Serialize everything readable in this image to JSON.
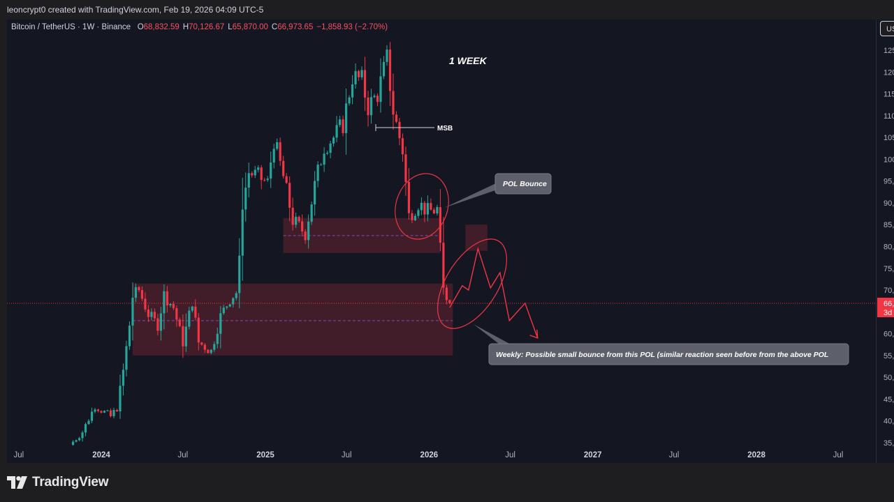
{
  "header": {
    "credit": "leoncrypt0 created with TradingView.com, Feb 19, 2026 04:09 UTC-5"
  },
  "legend": {
    "symbol": "Bitcoin / TetherUS · 1W · Binance",
    "open_key": "O",
    "open": "68,832.59",
    "high_key": "H",
    "high": "70,126.67",
    "low_key": "L",
    "low": "65,870.00",
    "close_key": "C",
    "close": "66,973.65",
    "change": "−1,858.93 (−2.70%)"
  },
  "currency_button": "US",
  "brand": "TradingView",
  "colors": {
    "up": "#26a69a",
    "down": "#f23645",
    "zone": "#f23645",
    "callout": "#5d606b"
  },
  "chart_data": {
    "type": "candlestick",
    "interval": "1W",
    "x_tick_labels": [
      "Jul",
      "2024",
      "Jul",
      "2025",
      "Jul",
      "2026",
      "Jul",
      "2027",
      "Jul",
      "2028",
      "Jul"
    ],
    "x_tick_values": [
      "2023-07",
      "2024-01",
      "2024-07",
      "2025-01",
      "2025-07",
      "2026-01",
      "2026-07",
      "2027-01",
      "2027-07",
      "2028-01",
      "2028-07"
    ],
    "y_tick_labels": [
      "125,",
      "120,",
      "115,",
      "110,",
      "105,",
      "100,",
      "95,",
      "90,",
      "85,",
      "80,",
      "75,",
      "70,",
      "60,",
      "55,",
      "50,",
      "45,",
      "40,",
      "35,"
    ],
    "y_tick_values": [
      125000,
      120000,
      115000,
      110000,
      105000,
      100000,
      95000,
      90000,
      85000,
      80000,
      75000,
      70000,
      60000,
      55000,
      50000,
      45000,
      40000,
      35000
    ],
    "ylim": [
      34000,
      128500
    ],
    "last_price_label": "66,",
    "last_price_countdown": "3d",
    "last_price": 66973.65,
    "close_path": [
      [
        "2023-10-23",
        34500
      ],
      [
        "2023-11-20",
        37500
      ],
      [
        "2023-12-18",
        43500
      ],
      [
        "2024-01-22",
        41000
      ],
      [
        "2024-02-05",
        43000
      ],
      [
        "2024-02-19",
        51500
      ],
      [
        "2024-03-04",
        62000
      ],
      [
        "2024-03-11",
        68500
      ],
      [
        "2024-03-25",
        70000
      ],
      [
        "2024-04-15",
        64500
      ],
      [
        "2024-05-06",
        62000
      ],
      [
        "2024-05-20",
        69000
      ],
      [
        "2024-06-10",
        66000
      ],
      [
        "2024-07-01",
        58000
      ],
      [
        "2024-07-22",
        67500
      ],
      [
        "2024-08-05",
        58000
      ],
      [
        "2024-09-02",
        56000
      ],
      [
        "2024-09-23",
        64000
      ],
      [
        "2024-10-14",
        68000
      ],
      [
        "2024-10-28",
        69500
      ],
      [
        "2024-11-04",
        76500
      ],
      [
        "2024-11-11",
        90000
      ],
      [
        "2024-11-25",
        97000
      ],
      [
        "2024-12-16",
        96000
      ],
      [
        "2025-01-06",
        94500
      ],
      [
        "2025-01-20",
        104500
      ],
      [
        "2025-02-10",
        96000
      ],
      [
        "2025-03-03",
        86000
      ],
      [
        "2025-03-31",
        83000
      ],
      [
        "2025-04-21",
        94000
      ],
      [
        "2025-05-12",
        103000
      ],
      [
        "2025-06-02",
        105000
      ],
      [
        "2025-06-23",
        108000
      ],
      [
        "2025-07-14",
        119000
      ],
      [
        "2025-08-04",
        118000
      ],
      [
        "2025-08-18",
        112000
      ],
      [
        "2025-09-08",
        115000
      ],
      [
        "2025-09-29",
        123000
      ],
      [
        "2025-10-13",
        111000
      ],
      [
        "2025-11-03",
        102000
      ],
      [
        "2025-11-17",
        87000
      ],
      [
        "2025-12-08",
        90000
      ],
      [
        "2025-12-29",
        88000
      ],
      [
        "2026-01-19",
        88500
      ],
      [
        "2026-02-02",
        70000
      ],
      [
        "2026-02-16",
        66973
      ]
    ],
    "zones": [
      {
        "label": "",
        "x0": "2025-02-10",
        "x1": "2026-01-26",
        "y0": 78500,
        "y1": 86500,
        "midline": 82500
      },
      {
        "label": "",
        "x0": "2024-03-11",
        "x1": "2026-02-23",
        "y0": 55000,
        "y1": 71500,
        "midline": 63000
      },
      {
        "label": "",
        "x0": "2026-03-23",
        "x1": "2026-05-11",
        "y0": 79000,
        "y1": 85000
      }
    ],
    "projection_path": [
      [
        "2026-02-16",
        66000
      ],
      [
        "2026-03-16",
        71000
      ],
      [
        "2026-03-30",
        70000
      ],
      [
        "2026-04-20",
        79500
      ],
      [
        "2026-05-18",
        70500
      ],
      [
        "2026-06-08",
        74000
      ],
      [
        "2026-06-29",
        63000
      ],
      [
        "2026-08-03",
        67000
      ],
      [
        "2026-08-31",
        59000
      ]
    ],
    "annotations": {
      "timeframe": "1 WEEK",
      "msb": "MSB",
      "pol_bounce": "POL Bounce",
      "weekly_note": "Weekly: Possible small bounce from this POL (similar reaction seen before from the above POL"
    }
  }
}
